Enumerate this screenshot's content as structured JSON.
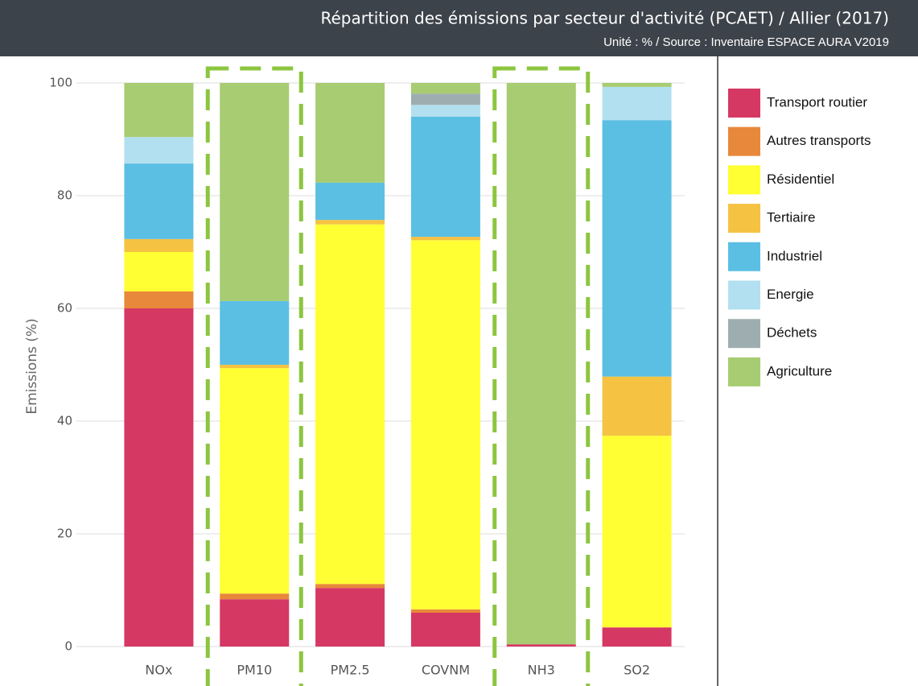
{
  "chart_data": {
    "type": "stacked_bar",
    "title": "Répartition des émissions par secteur d'activité (PCAET) / Allier (2017)",
    "subtitle": "Unité : % / Source : Inventaire ESPACE AURA V2019",
    "y_label": "Emissions (%)",
    "categories": [
      "NOx",
      "PM10",
      "PM2.5",
      "COVNM",
      "NH3",
      "SO2"
    ],
    "ylim": [
      0,
      100
    ],
    "yticks": [
      0,
      20,
      40,
      60,
      80,
      100
    ],
    "grid": true,
    "series": [
      {
        "name": "Transport routier",
        "color": "#d63864",
        "values": [
          60,
          8.4,
          10.4,
          6,
          0.4,
          3.4
        ]
      },
      {
        "name": "Autres transports",
        "color": "#e8883a",
        "values": [
          3,
          1,
          0.7,
          0.6,
          0,
          0
        ]
      },
      {
        "name": "Résidentiel",
        "color": "#ffff33",
        "values": [
          7,
          40,
          63.8,
          65.5,
          0,
          34
        ]
      },
      {
        "name": "Tertiaire",
        "color": "#f5c242",
        "values": [
          2.3,
          0.6,
          0.8,
          0.6,
          0,
          10.5
        ]
      },
      {
        "name": "Industriel",
        "color": "#5bbfe4",
        "values": [
          13.4,
          11.3,
          6.6,
          21.3,
          0,
          45.5
        ]
      },
      {
        "name": "Energie",
        "color": "#b3e0f0",
        "values": [
          4.7,
          0,
          0,
          2.1,
          0,
          5.9
        ]
      },
      {
        "name": "Déchets",
        "color": "#9eaeb0",
        "values": [
          0,
          0,
          0,
          2,
          0,
          0
        ]
      },
      {
        "name": "Agriculture",
        "color": "#a7cc72",
        "values": [
          9.6,
          38.7,
          17.7,
          1.9,
          99.6,
          0.7
        ]
      }
    ]
  }
}
